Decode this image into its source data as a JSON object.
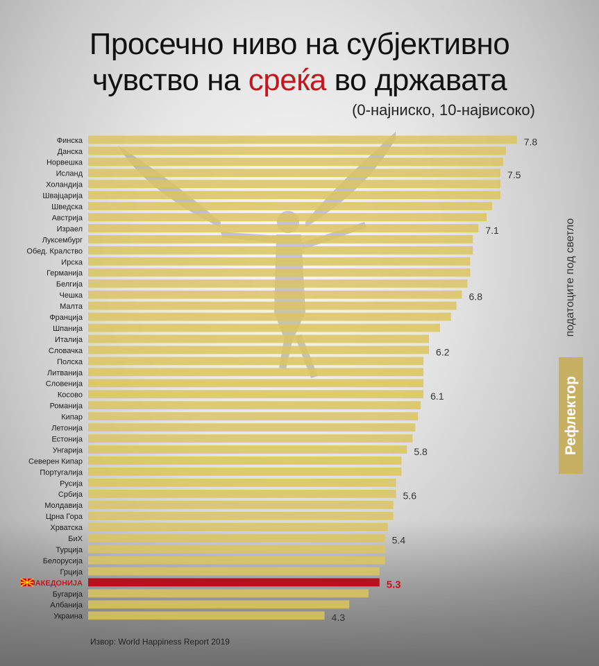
{
  "title": {
    "line1": "Просечно ниво на субјективно",
    "line2_pre": "чувство на ",
    "line2_highlight": "среќа",
    "line2_post": " во државата",
    "subtitle": "(0-најниско, 10-највисоко)"
  },
  "brand": {
    "name": "Рефлектор",
    "tagline": "податоците под светло"
  },
  "source": "Извор: World Happiness Report 2019",
  "colors": {
    "bar": "#dcc45d",
    "highlight_bar": "#b5121b",
    "highlight_text": "#c4161c",
    "logo_bg": "#c7b064"
  },
  "chart_data": {
    "type": "bar",
    "orientation": "horizontal",
    "highlight": "МАКЕДОНИЈА",
    "categories": [
      "Финска",
      "Данска",
      "Норвешка",
      "Исланд",
      "Холандија",
      "Швајцарија",
      "Шведска",
      "Австрија",
      "Израел",
      "Луксембург",
      "Обед. Кралство",
      "Ирска",
      "Германија",
      "Белгија",
      "Чешка",
      "Малта",
      "Франција",
      "Шпанија",
      "Италија",
      "Словачка",
      "Полска",
      "Литванија",
      "Словенија",
      "Косово",
      "Романија",
      "Кипар",
      "Летонија",
      "Естонија",
      "Унгарија",
      "Северен Кипар",
      "Португалија",
      "Русија",
      "Србија",
      "Молдавија",
      "Црна Гора",
      "Хрватска",
      "БиХ",
      "Турција",
      "Белорусија",
      "Грција",
      "МАКЕДОНИЈА",
      "Бугарија",
      "Албанија",
      "Украина"
    ],
    "values": [
      7.8,
      7.6,
      7.55,
      7.5,
      7.5,
      7.5,
      7.35,
      7.25,
      7.1,
      7.0,
      7.0,
      6.95,
      6.95,
      6.9,
      6.8,
      6.7,
      6.6,
      6.4,
      6.2,
      6.2,
      6.1,
      6.1,
      6.1,
      6.1,
      6.05,
      6.0,
      5.95,
      5.9,
      5.8,
      5.7,
      5.7,
      5.6,
      5.6,
      5.55,
      5.55,
      5.45,
      5.4,
      5.4,
      5.4,
      5.3,
      5.3,
      5.1,
      4.75,
      4.3
    ],
    "value_labels": [
      {
        "index": 0,
        "text": "7.8"
      },
      {
        "index": 3,
        "text": "7.5"
      },
      {
        "index": 8,
        "text": "7.1"
      },
      {
        "index": 14,
        "text": "6.8"
      },
      {
        "index": 19,
        "text": "6.2"
      },
      {
        "index": 23,
        "text": "6.1"
      },
      {
        "index": 28,
        "text": "5.8"
      },
      {
        "index": 32,
        "text": "5.6"
      },
      {
        "index": 36,
        "text": "5.4"
      },
      {
        "index": 40,
        "text": "5.3"
      },
      {
        "index": 43,
        "text": "4.3"
      }
    ],
    "xlim": [
      0,
      8
    ]
  }
}
